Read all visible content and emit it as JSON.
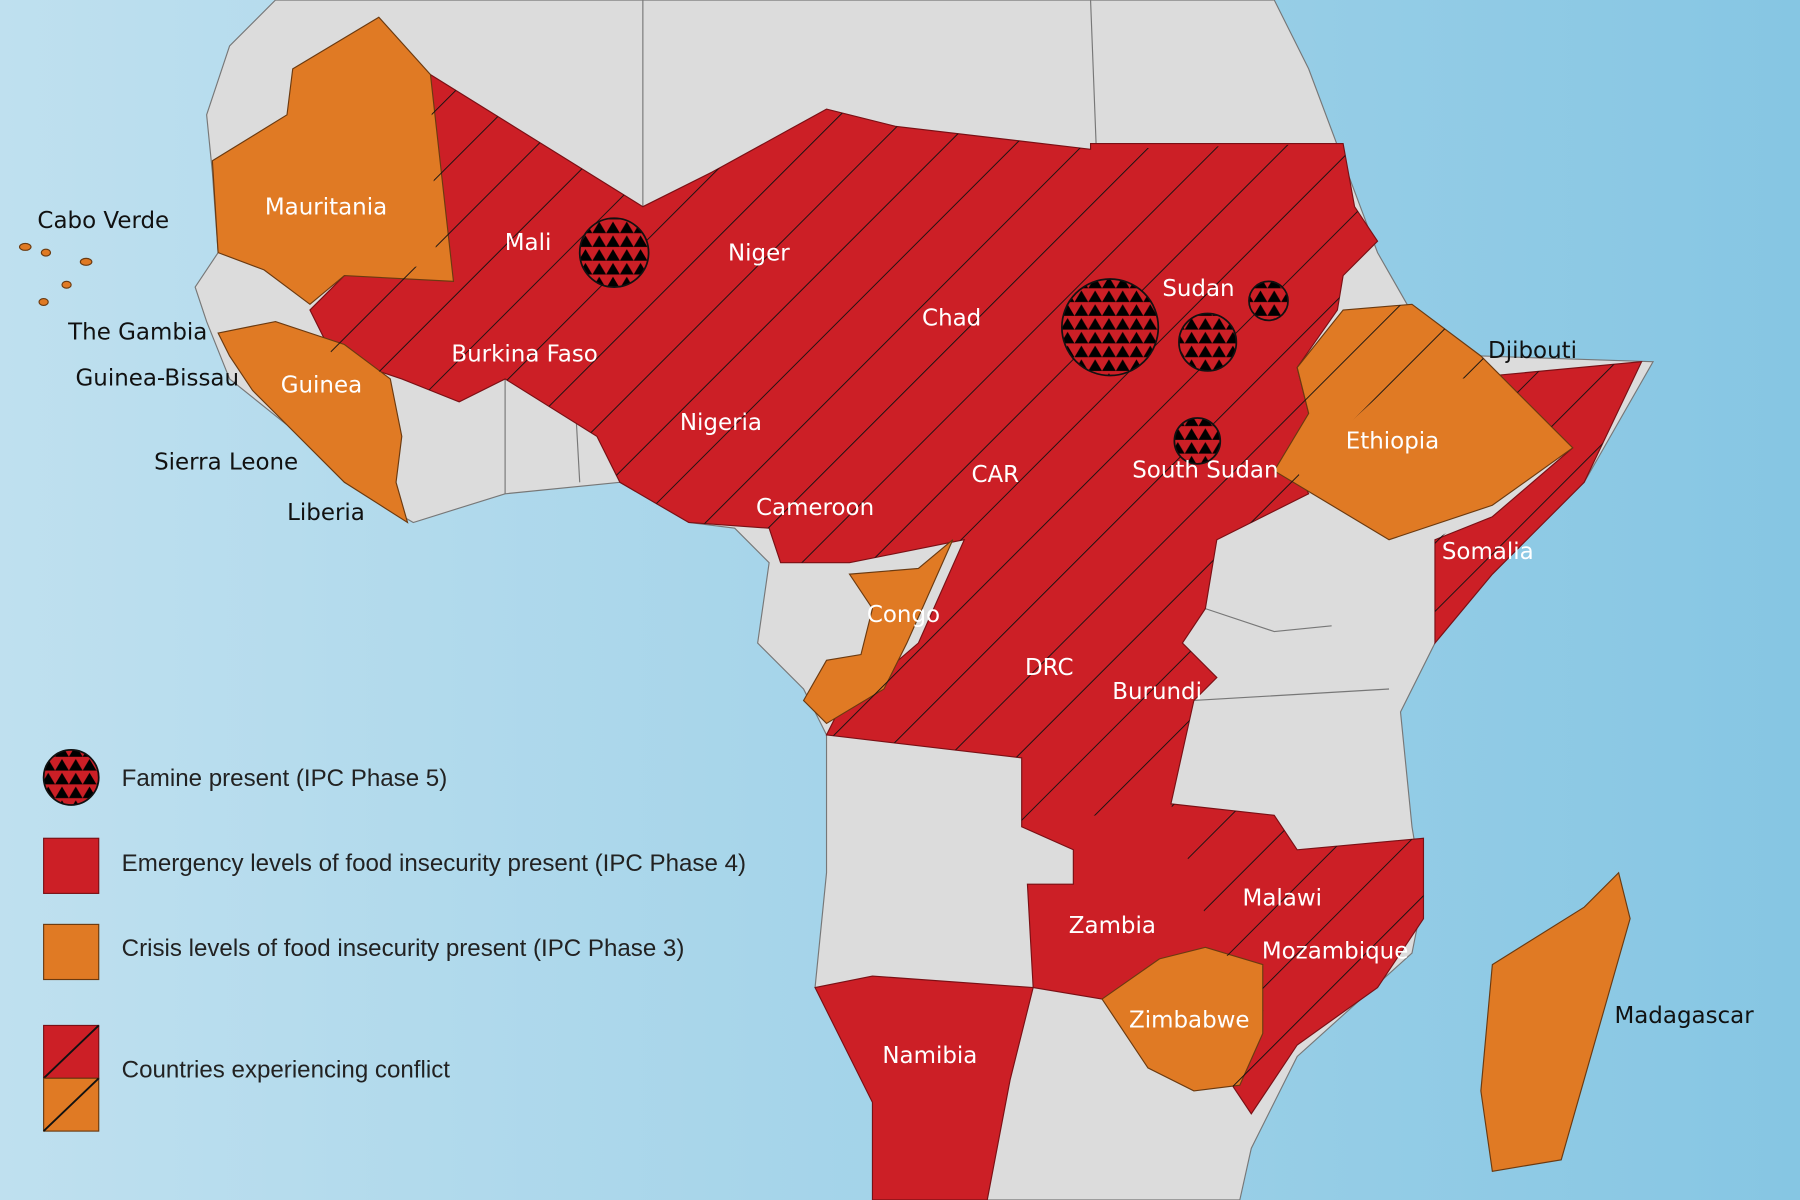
{
  "countries": [
    "Cabo Verde",
    "The Gambia",
    "Guinea-Bissau",
    "Sierra Leone",
    "Liberia",
    "Mauritania",
    "Mali",
    "Niger",
    "Burkina Faso",
    "Guinea",
    "Nigeria",
    "Chad",
    "Sudan",
    "South Sudan",
    "CAR",
    "Cameroon",
    "Congo",
    "DRC",
    "Burundi",
    "Djibouti",
    "Ethiopia",
    "Somalia",
    "Zambia",
    "Malawi",
    "Mozambique",
    "Zimbabwe",
    "Namibia",
    "Madagascar"
  ],
  "legend": [
    "Famine present (IPC Phase 5)",
    "Emergency levels of food insecurity present (IPC Phase 4)",
    "Crisis levels of food insecurity present (IPC Phase 3)",
    "Countries experiencing conflict"
  ]
}
